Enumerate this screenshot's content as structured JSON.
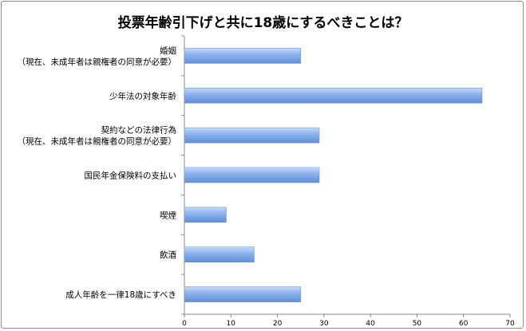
{
  "chart_data": {
    "type": "bar",
    "orientation": "horizontal",
    "title": "投票年齢引下げと共に18歳にするべきことは？",
    "categories": [
      [
        "婚姻",
        "（現在、未成年者は親権者の同意が必要）"
      ],
      [
        "少年法の対象年齢"
      ],
      [
        "契約などの法律行為",
        "（現在、未成年者は親権者の同意が必要）"
      ],
      [
        "国民年金保険料の支払い"
      ],
      [
        "喫煙"
      ],
      [
        "飲酒"
      ],
      [
        "成人年齢を一律18歳にすべき"
      ]
    ],
    "values": [
      25,
      64,
      29,
      29,
      9,
      15,
      25
    ],
    "xlim": [
      0,
      70
    ],
    "xticks": [
      "0",
      "10",
      "20",
      "30",
      "40",
      "50",
      "60",
      "70"
    ],
    "grid": false,
    "legend": "none",
    "bar_color": "#7ea6e6"
  }
}
